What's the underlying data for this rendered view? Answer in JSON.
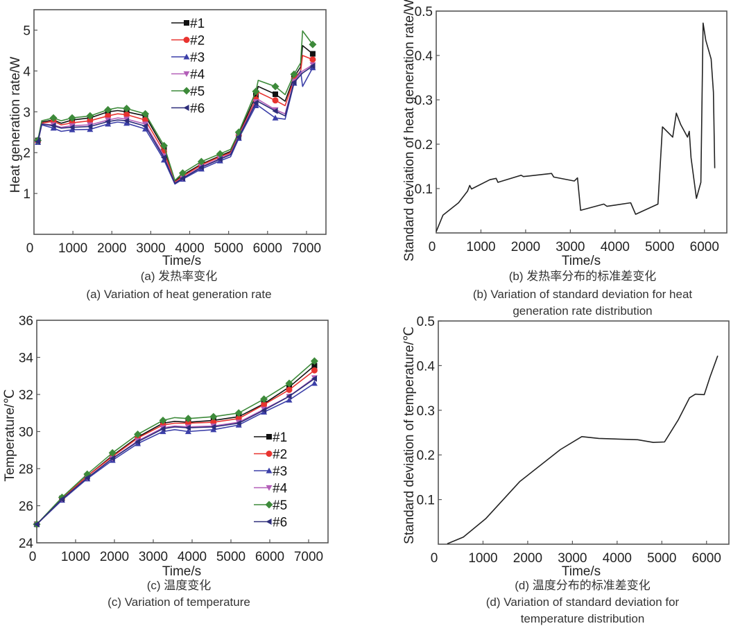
{
  "chart_data": [
    {
      "id": "a",
      "type": "line",
      "xlabel": "Time/s",
      "ylabel": "Heat generation rate/W",
      "caption_cn": "(a) 发热率变化",
      "caption_en": [
        "(a) Variation of heat generation rate"
      ],
      "xlim": [
        0,
        7500
      ],
      "ylim": [
        0,
        5.5
      ],
      "xticks": [
        0,
        1000,
        2000,
        3000,
        4000,
        5000,
        6000,
        7000
      ],
      "yticks": [
        1,
        2,
        3,
        4,
        5
      ],
      "legend_placement": "top-center",
      "x": [
        100,
        200,
        500,
        700,
        980,
        1440,
        1900,
        2150,
        2380,
        2860,
        3340,
        3620,
        3820,
        4300,
        4780,
        5050,
        5260,
        5700,
        5760,
        6200,
        6450,
        6680,
        6850,
        6900,
        7160
      ],
      "marker_x": [
        100,
        500,
        980,
        1440,
        1900,
        2380,
        2860,
        3340,
        3820,
        4300,
        4780,
        5260,
        5700,
        6200,
        6680,
        7160
      ],
      "series": [
        {
          "name": "#1",
          "color": "#111111",
          "marker": "square",
          "values": [
            2.3,
            2.75,
            2.8,
            2.72,
            2.8,
            2.85,
            3.0,
            3.03,
            3.0,
            2.9,
            2.1,
            1.3,
            1.45,
            1.72,
            1.92,
            2.03,
            2.45,
            3.4,
            3.62,
            3.43,
            3.26,
            3.85,
            4.1,
            4.62,
            4.42
          ]
        },
        {
          "name": "#2",
          "color": "#e8332f",
          "marker": "circle",
          "values": [
            2.28,
            2.72,
            2.77,
            2.68,
            2.73,
            2.78,
            2.9,
            2.95,
            2.93,
            2.8,
            2.02,
            1.28,
            1.42,
            1.7,
            1.9,
            2.0,
            2.43,
            3.3,
            3.48,
            3.28,
            3.15,
            3.8,
            4.0,
            4.38,
            4.28
          ]
        },
        {
          "name": "#3",
          "color": "#3b3fa8",
          "marker": "triangle-up",
          "values": [
            2.25,
            2.68,
            2.6,
            2.52,
            2.56,
            2.57,
            2.7,
            2.75,
            2.72,
            2.58,
            1.82,
            1.23,
            1.35,
            1.6,
            1.8,
            1.9,
            2.35,
            3.15,
            3.15,
            2.85,
            2.82,
            3.7,
            4.0,
            3.62,
            4.08
          ]
        },
        {
          "name": "#4",
          "color": "#b35fb8",
          "marker": "triangle-down",
          "values": [
            2.27,
            2.7,
            2.68,
            2.62,
            2.66,
            2.68,
            2.8,
            2.85,
            2.82,
            2.7,
            1.92,
            1.26,
            1.38,
            1.66,
            1.86,
            1.97,
            2.4,
            3.25,
            3.3,
            3.05,
            2.95,
            3.75,
            3.95,
            4.0,
            4.15
          ]
        },
        {
          "name": "#5",
          "color": "#3d8a3a",
          "marker": "diamond",
          "values": [
            2.3,
            2.78,
            2.85,
            2.78,
            2.85,
            2.9,
            3.05,
            3.1,
            3.08,
            2.95,
            2.17,
            1.32,
            1.5,
            1.78,
            1.97,
            2.08,
            2.5,
            3.5,
            3.77,
            3.62,
            3.42,
            3.92,
            4.2,
            4.98,
            4.65
          ]
        },
        {
          "name": "#6",
          "color": "#2d2d7a",
          "marker": "triangle-left",
          "values": [
            2.27,
            2.7,
            2.66,
            2.6,
            2.62,
            2.64,
            2.76,
            2.8,
            2.78,
            2.65,
            1.88,
            1.25,
            1.37,
            1.64,
            1.84,
            1.95,
            2.38,
            3.22,
            3.25,
            3.02,
            2.9,
            3.72,
            3.9,
            3.95,
            4.12
          ]
        }
      ]
    },
    {
      "id": "b",
      "type": "line",
      "xlabel": "Time/s",
      "ylabel": "Standard deviation of heat generation rate/W",
      "caption_cn": "(b) 发热率分布的标准差变化",
      "caption_en": [
        "(b) Variation of standard deviation for heat",
        "generation rate distribution"
      ],
      "xlim": [
        0,
        6500
      ],
      "ylim": [
        0,
        0.5
      ],
      "xticks": [
        0,
        1000,
        2000,
        3000,
        4000,
        5000,
        6000
      ],
      "yticks": [
        0.1,
        0.2,
        0.3,
        0.4,
        0.5
      ],
      "x": [
        0,
        150,
        500,
        700,
        750,
        790,
        1200,
        1340,
        1380,
        1900,
        1950,
        2580,
        2630,
        3090,
        3160,
        3230,
        3750,
        3820,
        4350,
        4460,
        4960,
        5060,
        5290,
        5370,
        5470,
        5620,
        5660,
        5700,
        5820,
        5920,
        5970,
        6030,
        6150,
        6200,
        6230
      ],
      "series": [
        {
          "color": "#222222",
          "values": [
            0.003,
            0.04,
            0.068,
            0.094,
            0.107,
            0.099,
            0.12,
            0.123,
            0.114,
            0.13,
            0.127,
            0.134,
            0.126,
            0.117,
            0.124,
            0.051,
            0.065,
            0.06,
            0.068,
            0.042,
            0.065,
            0.239,
            0.216,
            0.27,
            0.244,
            0.216,
            0.229,
            0.17,
            0.078,
            0.114,
            0.473,
            0.434,
            0.392,
            0.317,
            0.146
          ]
        }
      ]
    },
    {
      "id": "c",
      "type": "line",
      "xlabel": "Time/s",
      "ylabel": "Temperature/℃",
      "caption_cn": "(c) 温度变化",
      "caption_en": [
        "(c) Variation of temperature"
      ],
      "xlim": [
        0,
        7500
      ],
      "ylim": [
        24,
        36
      ],
      "xticks": [
        0,
        1000,
        2000,
        3000,
        4000,
        5000,
        6000,
        7000
      ],
      "yticks": [
        24,
        26,
        28,
        30,
        32,
        34,
        36
      ],
      "legend_placement": "center-right",
      "x": [
        0,
        650,
        1300,
        1950,
        2600,
        3250,
        3550,
        3900,
        4550,
        5200,
        5850,
        6500,
        7150
      ],
      "marker_x": [
        0,
        650,
        1300,
        1950,
        2600,
        3250,
        3900,
        4550,
        5200,
        5850,
        6500,
        7150
      ],
      "series": [
        {
          "name": "#1",
          "color": "#111111",
          "marker": "square",
          "values": [
            25,
            26.4,
            27.6,
            28.7,
            29.7,
            30.45,
            30.55,
            30.5,
            30.6,
            30.8,
            31.5,
            32.4,
            33.55
          ]
        },
        {
          "name": "#2",
          "color": "#e8332f",
          "marker": "circle",
          "values": [
            25,
            26.4,
            27.6,
            28.65,
            29.65,
            30.35,
            30.45,
            30.45,
            30.5,
            30.7,
            31.45,
            32.25,
            33.3
          ]
        },
        {
          "name": "#3",
          "color": "#3b3fa8",
          "marker": "triangle-up",
          "values": [
            25,
            26.3,
            27.45,
            28.45,
            29.35,
            30.0,
            30.1,
            30.0,
            30.1,
            30.35,
            31.05,
            31.7,
            32.6
          ]
        },
        {
          "name": "#4",
          "color": "#b35fb8",
          "marker": "triangle-down",
          "values": [
            25,
            26.35,
            27.5,
            28.55,
            29.5,
            30.2,
            30.3,
            30.25,
            30.3,
            30.5,
            31.2,
            31.9,
            32.9
          ]
        },
        {
          "name": "#5",
          "color": "#3d8a3a",
          "marker": "diamond",
          "values": [
            25,
            26.45,
            27.7,
            28.85,
            29.85,
            30.6,
            30.75,
            30.7,
            30.8,
            31.0,
            31.75,
            32.6,
            33.8
          ]
        },
        {
          "name": "#6",
          "color": "#2d2d7a",
          "marker": "triangle-left",
          "values": [
            25,
            26.35,
            27.5,
            28.55,
            29.45,
            30.15,
            30.25,
            30.2,
            30.25,
            30.45,
            31.15,
            31.9,
            32.85
          ]
        }
      ]
    },
    {
      "id": "d",
      "type": "line",
      "xlabel": "Time/s",
      "ylabel": "Standard deviation of temperature/℃",
      "caption_cn": "(d) 温度分布的标准差变化",
      "caption_en": [
        "(d) Variation of standard deviation for",
        "temperature distribution"
      ],
      "xlim": [
        0,
        6500
      ],
      "ylim": [
        0,
        0.5
      ],
      "xticks": [
        0,
        1000,
        2000,
        3000,
        4000,
        5000,
        6000
      ],
      "yticks": [
        0.1,
        0.2,
        0.3,
        0.4,
        0.5
      ],
      "x": [
        200,
        560,
        1060,
        1820,
        2730,
        3210,
        3590,
        4460,
        4810,
        5060,
        5370,
        5620,
        5750,
        5950,
        6080,
        6250
      ],
      "series": [
        {
          "color": "#222222",
          "values": [
            0.001,
            0.016,
            0.057,
            0.14,
            0.212,
            0.241,
            0.237,
            0.234,
            0.228,
            0.229,
            0.279,
            0.328,
            0.336,
            0.335,
            0.375,
            0.422
          ]
        }
      ]
    }
  ]
}
